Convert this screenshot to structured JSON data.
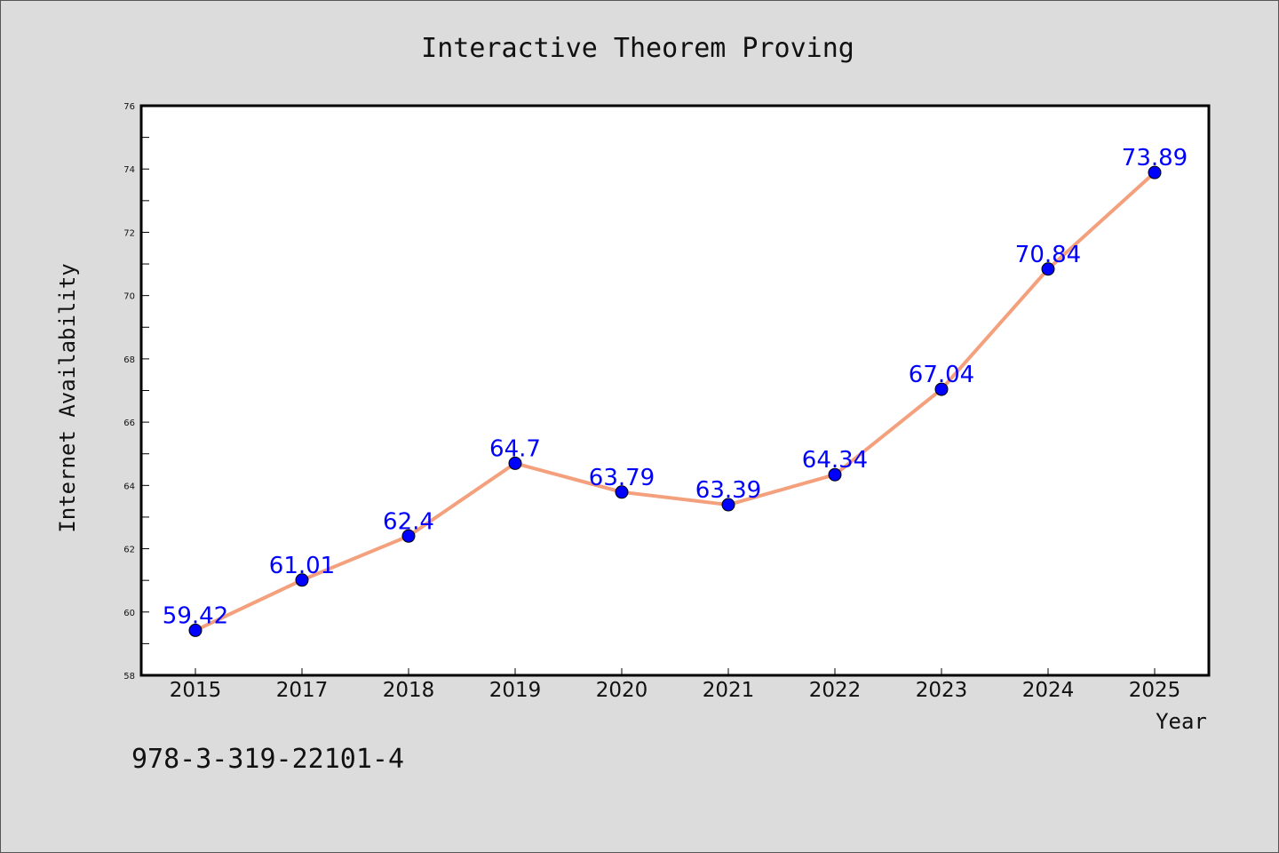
{
  "colors": {
    "background": "#dcdcdc",
    "plot_background": "#ffffff",
    "line": "#f4a07c",
    "marker": "#0000ff",
    "data_label": "#0000ff"
  },
  "footnote": "978-3-319-22101-4",
  "chart_data": {
    "type": "line",
    "title": "Interactive Theorem Proving",
    "xlabel": "Year",
    "ylabel": "Internet Availability",
    "categories": [
      "2015",
      "2017",
      "2018",
      "2019",
      "2020",
      "2021",
      "2022",
      "2023",
      "2024",
      "2025"
    ],
    "series": [
      {
        "values": [
          59.42,
          61.01,
          62.4,
          64.7,
          63.79,
          63.39,
          64.34,
          67.04,
          70.84,
          73.89
        ],
        "labels": [
          "59.42",
          "61.01",
          "62.4",
          "64.7",
          "63.79",
          "63.39",
          "64.34",
          "67.04",
          "70.84",
          "73.89"
        ]
      }
    ],
    "ylim": [
      58,
      76
    ],
    "yticks": [
      58,
      60,
      62,
      64,
      66,
      68,
      70,
      72,
      74,
      76
    ],
    "grid": false,
    "legend": "none"
  }
}
